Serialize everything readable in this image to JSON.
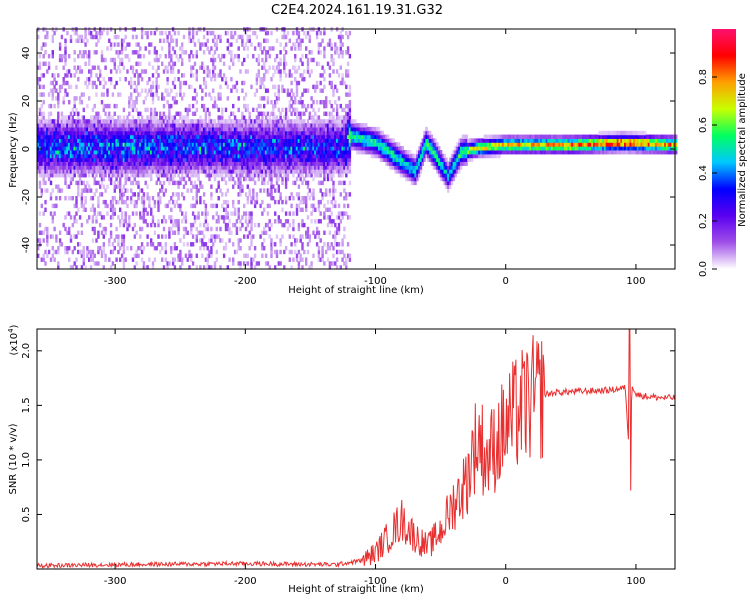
{
  "title": "C2E4.2024.161.19.31.G32",
  "chart_data": [
    {
      "type": "heatmap",
      "xlabel": "Height of straight line (km)",
      "ylabel": "Frequency (Hz)",
      "xlim": [
        -360,
        130
      ],
      "ylim": [
        -50,
        50
      ],
      "xticks": [
        -300,
        -200,
        -100,
        0,
        100
      ],
      "yticks": [
        -40,
        -20,
        0,
        20,
        40
      ],
      "colorbar": {
        "label": "Normalized spectral amplitude",
        "range": [
          0,
          1
        ],
        "ticks": [
          0.0,
          0.2,
          0.4,
          0.6,
          0.8
        ],
        "colors": [
          "#ffffff",
          "#a050e8",
          "#5a00f0",
          "#0000ff",
          "#00c8ff",
          "#00ff60",
          "#c8ff00",
          "#ffa000",
          "#ff0000",
          "#ff1070"
        ]
      },
      "ridge": [
        {
          "x": -360,
          "f": 0,
          "amp": 0.35
        },
        {
          "x": -300,
          "f": 0,
          "amp": 0.35
        },
        {
          "x": -200,
          "f": 0,
          "amp": 0.3
        },
        {
          "x": -125,
          "f": 0,
          "amp": 0.3
        },
        {
          "x": -120,
          "f": 5,
          "amp": 0.55
        },
        {
          "x": -100,
          "f": 2,
          "amp": 0.55
        },
        {
          "x": -85,
          "f": -4,
          "amp": 0.55
        },
        {
          "x": -70,
          "f": -10,
          "amp": 0.5
        },
        {
          "x": -62,
          "f": 2,
          "amp": 0.6
        },
        {
          "x": -55,
          "f": -3,
          "amp": 0.6
        },
        {
          "x": -45,
          "f": -12,
          "amp": 0.45
        },
        {
          "x": -35,
          "f": -2,
          "amp": 0.6
        },
        {
          "x": -20,
          "f": 0,
          "amp": 0.75
        },
        {
          "x": 0,
          "f": 1,
          "amp": 0.75
        },
        {
          "x": 50,
          "f": 1,
          "amp": 0.85
        },
        {
          "x": 90,
          "f": 2,
          "amp": 0.9
        },
        {
          "x": 130,
          "f": 1,
          "amp": 0.8
        }
      ]
    },
    {
      "type": "line",
      "xlabel": "Height of straight line (km)",
      "ylabel": "SNR (10 * v/v)",
      "y_scale_label": "(x10",
      "y_scale_exp": "4",
      "y_scale_close": ")",
      "xlim": [
        -360,
        130
      ],
      "ylim": [
        0,
        2.2
      ],
      "xticks": [
        -300,
        -200,
        -100,
        0,
        100
      ],
      "yticks": [
        0.5,
        1.0,
        1.5,
        2.0
      ],
      "color": "#e83030",
      "series": [
        {
          "x": [
            -360,
            -300,
            -200,
            -130,
            -110,
            -100,
            -90,
            -80,
            -70,
            -60,
            -50,
            -40,
            -30,
            -25,
            -20,
            -15,
            -10,
            -5,
            0,
            10,
            20,
            30,
            40,
            60,
            80,
            92,
            95,
            97,
            100,
            110,
            120,
            130
          ],
          "y": [
            0.03,
            0.04,
            0.05,
            0.04,
            0.08,
            0.15,
            0.3,
            0.45,
            0.3,
            0.2,
            0.35,
            0.6,
            0.8,
            1.1,
            1.2,
            1.0,
            1.1,
            1.2,
            1.3,
            1.45,
            1.55,
            1.6,
            1.62,
            1.63,
            1.64,
            1.66,
            1.0,
            1.7,
            1.6,
            1.58,
            1.57,
            1.57
          ]
        }
      ]
    }
  ]
}
